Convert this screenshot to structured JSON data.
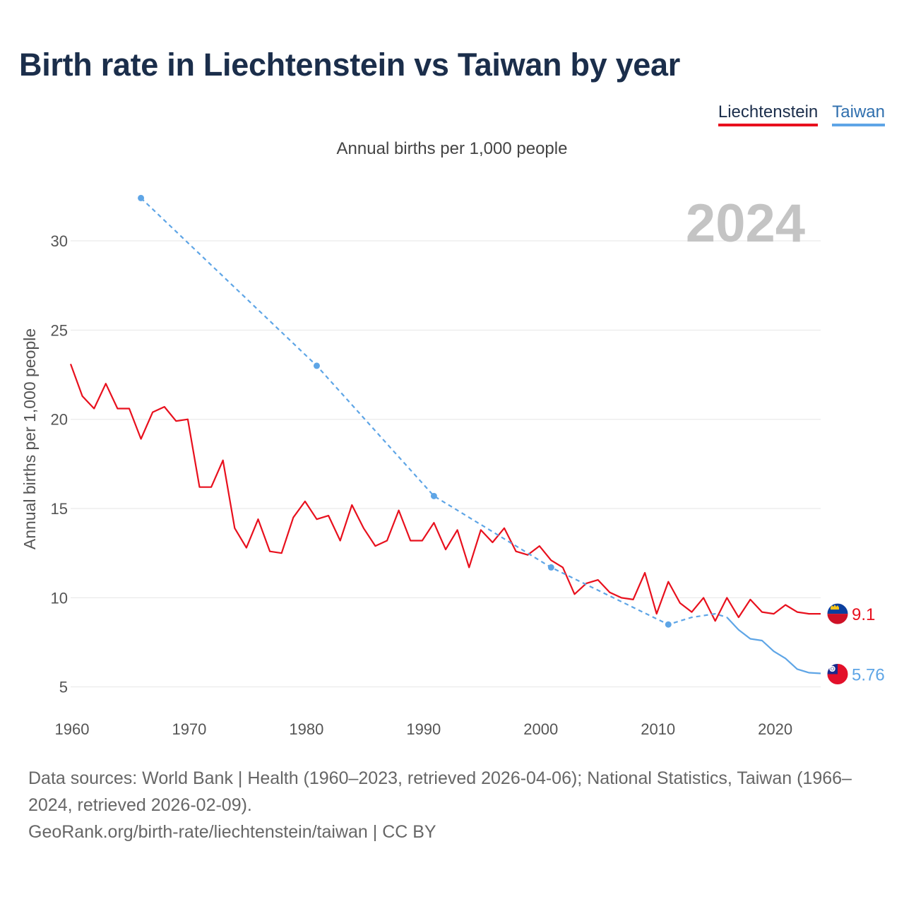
{
  "title": "Birth rate in Liechtenstein vs Taiwan by year",
  "legend": {
    "liechtenstein": "Liechtenstein",
    "taiwan": "Taiwan"
  },
  "subtitle": "Annual births per 1,000 people",
  "footer": {
    "sources": "Data sources: World Bank | Health (1960–2023, retrieved 2026-04-06); National Statistics, Taiwan (1966–2024, retrieved 2026-02-09).",
    "credit": "GeoRank.org/birth-rate/liechtenstein/taiwan | CC BY"
  },
  "colors": {
    "liechtenstein": "#e8101d",
    "taiwan": "#5ea5e6",
    "title": "#1b2e4b",
    "year_watermark": "#c4c4c4",
    "grid": "#e6e6e6"
  },
  "chart_data": {
    "type": "line",
    "title": "Birth rate in Liechtenstein vs Taiwan by year",
    "ylabel": "Annual births per 1,000 people",
    "xlabel": "",
    "year_label": "2024",
    "xlim": [
      1960,
      2024
    ],
    "ylim": [
      3.8,
      34
    ],
    "x_ticks": [
      1960,
      1970,
      1980,
      1990,
      2000,
      2010,
      2020
    ],
    "y_ticks": [
      5,
      10,
      15,
      20,
      25,
      30
    ],
    "grid": true,
    "series": [
      {
        "name": "Liechtenstein",
        "color": "#e8101d",
        "style": "solid",
        "end_label": "9.1",
        "end_icon": "liechtenstein-flag-icon",
        "points": [
          [
            1960,
            23.1
          ],
          [
            1961,
            21.3
          ],
          [
            1962,
            20.6
          ],
          [
            1963,
            22.0
          ],
          [
            1964,
            20.6
          ],
          [
            1965,
            20.6
          ],
          [
            1966,
            18.9
          ],
          [
            1967,
            20.4
          ],
          [
            1968,
            20.7
          ],
          [
            1969,
            19.9
          ],
          [
            1970,
            20.0
          ],
          [
            1971,
            16.2
          ],
          [
            1972,
            16.2
          ],
          [
            1973,
            17.7
          ],
          [
            1974,
            13.9
          ],
          [
            1975,
            12.8
          ],
          [
            1976,
            14.4
          ],
          [
            1977,
            12.6
          ],
          [
            1978,
            12.5
          ],
          [
            1979,
            14.5
          ],
          [
            1980,
            15.4
          ],
          [
            1981,
            14.4
          ],
          [
            1982,
            14.6
          ],
          [
            1983,
            13.2
          ],
          [
            1984,
            15.2
          ],
          [
            1985,
            13.9
          ],
          [
            1986,
            12.9
          ],
          [
            1987,
            13.2
          ],
          [
            1988,
            14.9
          ],
          [
            1989,
            13.2
          ],
          [
            1990,
            13.2
          ],
          [
            1991,
            14.2
          ],
          [
            1992,
            12.7
          ],
          [
            1993,
            13.8
          ],
          [
            1994,
            11.7
          ],
          [
            1995,
            13.8
          ],
          [
            1996,
            13.1
          ],
          [
            1997,
            13.9
          ],
          [
            1998,
            12.6
          ],
          [
            1999,
            12.4
          ],
          [
            2000,
            12.9
          ],
          [
            2001,
            12.1
          ],
          [
            2002,
            11.7
          ],
          [
            2003,
            10.2
          ],
          [
            2004,
            10.8
          ],
          [
            2005,
            11.0
          ],
          [
            2006,
            10.3
          ],
          [
            2007,
            10.0
          ],
          [
            2008,
            9.9
          ],
          [
            2009,
            11.4
          ],
          [
            2010,
            9.1
          ],
          [
            2011,
            10.9
          ],
          [
            2012,
            9.7
          ],
          [
            2013,
            9.2
          ],
          [
            2014,
            10.0
          ],
          [
            2015,
            8.7
          ],
          [
            2016,
            10.0
          ],
          [
            2017,
            8.9
          ],
          [
            2018,
            9.9
          ],
          [
            2019,
            9.2
          ],
          [
            2020,
            9.1
          ],
          [
            2021,
            9.6
          ],
          [
            2022,
            9.2
          ],
          [
            2023,
            9.1
          ],
          [
            2024,
            9.1
          ]
        ]
      },
      {
        "name": "Taiwan",
        "color": "#5ea5e6",
        "style": "dashed-then-solid",
        "dashed_until": 2016,
        "markers": [
          1966,
          1981,
          1991,
          2001,
          2011
        ],
        "end_label": "5.76",
        "end_icon": "taiwan-flag-icon",
        "points": [
          [
            1966,
            32.4
          ],
          [
            1981,
            23.0
          ],
          [
            1991,
            15.7
          ],
          [
            2001,
            11.7
          ],
          [
            2011,
            8.5
          ],
          [
            2012,
            8.7
          ],
          [
            2013,
            8.9
          ],
          [
            2014,
            9.0
          ],
          [
            2015,
            9.1
          ],
          [
            2016,
            8.9
          ],
          [
            2017,
            8.2
          ],
          [
            2018,
            7.7
          ],
          [
            2019,
            7.6
          ],
          [
            2020,
            7.0
          ],
          [
            2021,
            6.6
          ],
          [
            2022,
            6.0
          ],
          [
            2023,
            5.8
          ],
          [
            2024,
            5.76
          ]
        ]
      }
    ]
  }
}
